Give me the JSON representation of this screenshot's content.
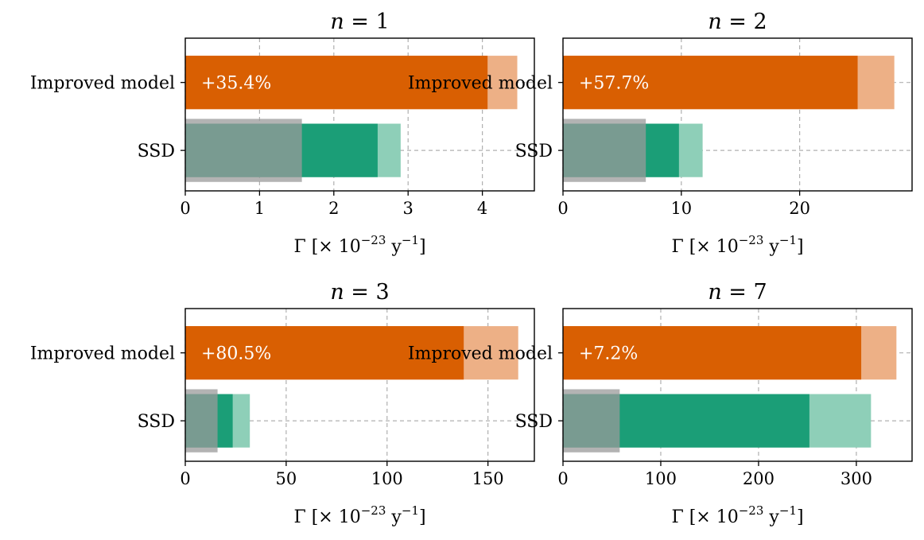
{
  "colors": {
    "improved_dark": "#d95f02",
    "improved_light": "#edb086",
    "ssd_dark": "#1b9e77",
    "ssd_light": "#8ecfb8",
    "ssd_gray": "#999999"
  },
  "chart_data": [
    {
      "type": "bar",
      "orientation": "horizontal",
      "title_var": "n",
      "title_val": "1",
      "categories": [
        "Improved model",
        "SSD"
      ],
      "xlabel_main": "Γ [× 10",
      "xlabel_exp": "−23",
      "xlabel_unit": " y",
      "xlabel_unit_exp": "−1",
      "xlabel_close": "]",
      "xlim": [
        0,
        4.7
      ],
      "xticks": [
        0,
        1,
        2,
        3,
        4
      ],
      "series": {
        "improved_base": 4.07,
        "improved_total": 4.47,
        "ssd_gray": 1.57,
        "ssd_base": 2.59,
        "ssd_total": 2.9
      },
      "annotation": "+35.4%"
    },
    {
      "type": "bar",
      "orientation": "horizontal",
      "title_var": "n",
      "title_val": "2",
      "categories": [
        "Improved model",
        "SSD"
      ],
      "xlabel_main": "Γ [× 10",
      "xlabel_exp": "−23",
      "xlabel_unit": " y",
      "xlabel_unit_exp": "−1",
      "xlabel_close": "]",
      "xlim": [
        0,
        29.5
      ],
      "xticks": [
        0,
        10,
        20
      ],
      "series": {
        "improved_base": 24.9,
        "improved_total": 28.0,
        "ssd_gray": 7.0,
        "ssd_base": 9.8,
        "ssd_total": 11.8
      },
      "annotation": "+57.7%"
    },
    {
      "type": "bar",
      "orientation": "horizontal",
      "title_var": "n",
      "title_val": "3",
      "categories": [
        "Improved model",
        "SSD"
      ],
      "xlabel_main": "Γ [× 10",
      "xlabel_exp": "−23",
      "xlabel_unit": " y",
      "xlabel_unit_exp": "−1",
      "xlabel_close": "]",
      "xlim": [
        0,
        173
      ],
      "xticks": [
        0,
        50,
        100,
        150
      ],
      "series": {
        "improved_base": 138,
        "improved_total": 165,
        "ssd_gray": 16,
        "ssd_base": 23.5,
        "ssd_total": 32
      },
      "annotation": "+80.5%"
    },
    {
      "type": "bar",
      "orientation": "horizontal",
      "title_var": "n",
      "title_val": "7",
      "categories": [
        "Improved model",
        "SSD"
      ],
      "xlabel_main": "Γ [× 10",
      "xlabel_exp": "−23",
      "xlabel_unit": " y",
      "xlabel_unit_exp": "−1",
      "xlabel_close": "]",
      "xlim": [
        0,
        357
      ],
      "xticks": [
        0,
        100,
        200,
        300
      ],
      "series": {
        "improved_base": 305,
        "improved_total": 341,
        "ssd_gray": 58,
        "ssd_base": 252,
        "ssd_total": 315
      },
      "annotation": "+7.2%"
    }
  ]
}
